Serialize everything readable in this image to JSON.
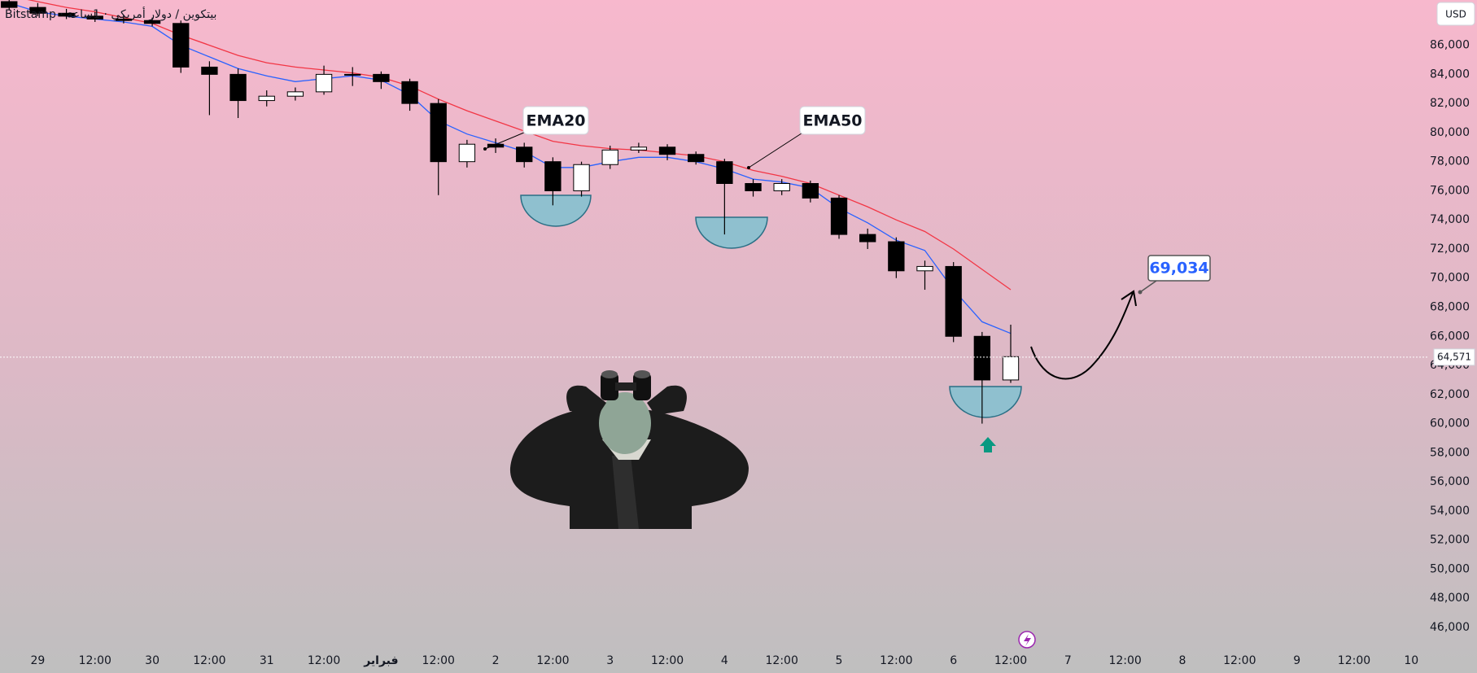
{
  "chart_data": {
    "type": "candlestick",
    "title": "Bitstamp · بيتكوين / دولار أمريكي · 1ساعة",
    "currency": "USD",
    "x": [
      -0.25,
      0,
      0.25,
      0.5,
      0.75,
      1,
      1.25,
      1.5,
      1.75,
      2,
      2.25,
      2.5,
      2.75,
      3,
      3.25,
      3.5,
      3.75,
      4,
      4.25,
      4.5,
      4.75,
      5,
      5.25,
      5.5,
      5.75,
      6,
      6.25,
      6.5,
      6.75,
      7,
      7.25,
      7.5,
      7.75,
      8,
      8.25,
      8.5
    ],
    "open": [
      89000,
      88600,
      88200,
      88000,
      87800,
      87700,
      87500,
      84500,
      84000,
      82200,
      82500,
      82800,
      84000,
      84000,
      83500,
      82000,
      78000,
      79200,
      79000,
      78000,
      76000,
      77800,
      78800,
      79000,
      78500,
      78000,
      76500,
      76000,
      76500,
      75500,
      73000,
      72500,
      70500,
      70800,
      66000,
      63000
    ],
    "high": [
      89300,
      88900,
      88500,
      88300,
      88100,
      87900,
      87700,
      84900,
      84400,
      82900,
      83100,
      84600,
      84500,
      84200,
      83700,
      82300,
      79500,
      79600,
      79300,
      78300,
      78000,
      79100,
      79300,
      79200,
      78700,
      78200,
      76800,
      76800,
      76700,
      75700,
      73400,
      72800,
      71200,
      71100,
      66300,
      66800
    ],
    "low": [
      88400,
      88000,
      87800,
      87600,
      87500,
      87300,
      84100,
      81200,
      81000,
      81800,
      82200,
      82600,
      83200,
      83000,
      81500,
      75700,
      77600,
      78600,
      77600,
      75000,
      75600,
      77500,
      78600,
      78100,
      77800,
      73000,
      75600,
      75700,
      75200,
      72700,
      72000,
      70000,
      69200,
      65600,
      60000,
      62800
    ],
    "close": [
      88600,
      88200,
      88000,
      87800,
      87700,
      87500,
      84500,
      84000,
      82200,
      82500,
      82800,
      84000,
      84000,
      83500,
      82000,
      78000,
      79200,
      79000,
      78000,
      76000,
      77800,
      78800,
      79000,
      78500,
      78000,
      76500,
      76000,
      76500,
      75500,
      73000,
      72500,
      70500,
      70800,
      66000,
      63000,
      64600
    ],
    "up_color": "#ffffff",
    "down_color": "#000000",
    "series": [
      {
        "name": "EMA20",
        "color": "#2962ff",
        "values": [
          88900,
          88300,
          88000,
          87800,
          87600,
          87300,
          86000,
          85200,
          84400,
          83900,
          83500,
          83700,
          83900,
          83600,
          82600,
          80800,
          79900,
          79300,
          78700,
          77600,
          77600,
          78000,
          78300,
          78300,
          78000,
          77500,
          76800,
          76600,
          76200,
          74800,
          73800,
          72600,
          71900,
          69200,
          67000,
          66200
        ]
      },
      {
        "name": "EMA50",
        "color": "#f23645",
        "values": [
          89400,
          89000,
          88600,
          88300,
          87900,
          87500,
          86700,
          86000,
          85300,
          84800,
          84500,
          84300,
          84100,
          83800,
          83200,
          82300,
          81500,
          80800,
          80100,
          79400,
          79100,
          78900,
          78800,
          78600,
          78400,
          78000,
          77400,
          77000,
          76500,
          75700,
          74900,
          74000,
          73200,
          72000,
          70600,
          69200
        ]
      }
    ],
    "last_price": {
      "value": 64571,
      "label": "64,571"
    },
    "target": {
      "value": 69034,
      "label": "69,034"
    },
    "xlim": [
      -0.33,
      12.14
    ],
    "xticks": [
      {
        "value": 0,
        "label": "29"
      },
      {
        "value": 0.5,
        "label": "12:00"
      },
      {
        "value": 1,
        "label": "30"
      },
      {
        "value": 1.5,
        "label": "12:00"
      },
      {
        "value": 2,
        "label": "31"
      },
      {
        "value": 2.5,
        "label": "12:00"
      },
      {
        "value": 3,
        "label": "فبراير"
      },
      {
        "value": 3.5,
        "label": "12:00"
      },
      {
        "value": 4,
        "label": "2"
      },
      {
        "value": 4.5,
        "label": "12:00"
      },
      {
        "value": 5,
        "label": "3"
      },
      {
        "value": 5.5,
        "label": "12:00"
      },
      {
        "value": 6,
        "label": "4"
      },
      {
        "value": 6.5,
        "label": "12:00"
      },
      {
        "value": 7,
        "label": "5"
      },
      {
        "value": 7.5,
        "label": "12:00"
      },
      {
        "value": 8,
        "label": "6"
      },
      {
        "value": 8.5,
        "label": "12:00"
      },
      {
        "value": 9,
        "label": "7"
      },
      {
        "value": 9.5,
        "label": "12:00"
      },
      {
        "value": 10,
        "label": "8"
      },
      {
        "value": 10.5,
        "label": "12:00"
      },
      {
        "value": 11,
        "label": "9"
      },
      {
        "value": 11.5,
        "label": "12:00"
      },
      {
        "value": 12,
        "label": "10"
      }
    ],
    "ylim": [
      44430,
      89110
    ],
    "yticks": [
      {
        "value": 46000,
        "label": "46,000"
      },
      {
        "value": 48000,
        "label": "48,000"
      },
      {
        "value": 50000,
        "label": "50,000"
      },
      {
        "value": 52000,
        "label": "52,000"
      },
      {
        "value": 54000,
        "label": "54,000"
      },
      {
        "value": 56000,
        "label": "56,000"
      },
      {
        "value": 58000,
        "label": "58,000"
      },
      {
        "value": 60000,
        "label": "60,000"
      },
      {
        "value": 62000,
        "label": "62,000"
      },
      {
        "value": 64000,
        "label": "64,000"
      },
      {
        "value": 66000,
        "label": "66,000"
      },
      {
        "value": 68000,
        "label": "68,000"
      },
      {
        "value": 70000,
        "label": "70,000"
      },
      {
        "value": 72000,
        "label": "72,000"
      },
      {
        "value": 74000,
        "label": "74,000"
      },
      {
        "value": 76000,
        "label": "76,000"
      },
      {
        "value": 78000,
        "label": "78,000"
      },
      {
        "value": 80000,
        "label": "80,000"
      },
      {
        "value": 82000,
        "label": "82,000"
      },
      {
        "value": 84000,
        "label": "84,000"
      },
      {
        "value": 86000,
        "label": "86,000"
      }
    ]
  }
}
